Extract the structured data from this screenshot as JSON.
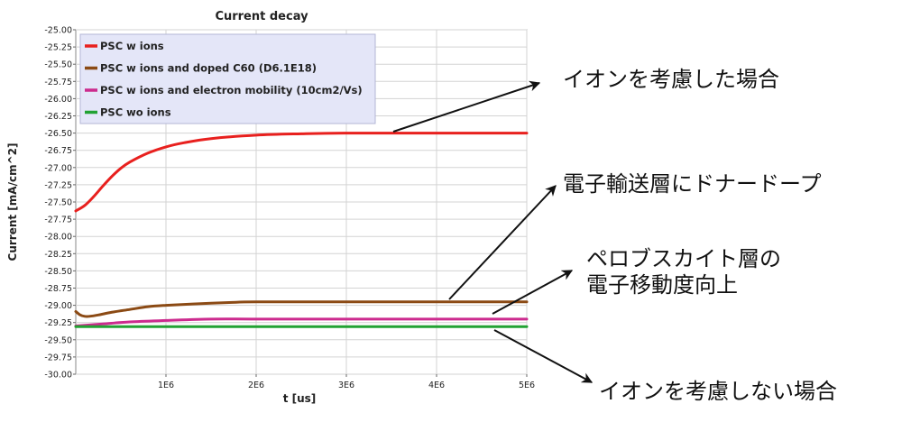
{
  "chart_data": {
    "type": "line",
    "title": "Current decay",
    "xlabel": "t [us]",
    "ylabel": "Current [mA/cm^2]",
    "xlim": [
      0,
      5000000
    ],
    "ylim": [
      -30.0,
      -25.0
    ],
    "x_ticks": [
      1000000,
      2000000,
      3000000,
      4000000,
      5000000
    ],
    "x_tick_labels": [
      "1E6",
      "2E6",
      "3E6",
      "4E6",
      "5E6"
    ],
    "y_ticks": [
      -25.0,
      -25.25,
      -25.5,
      -25.75,
      -26.0,
      -26.25,
      -26.5,
      -26.75,
      -27.0,
      -27.25,
      -27.5,
      -27.75,
      -28.0,
      -28.25,
      -28.5,
      -28.75,
      -29.0,
      -29.25,
      -29.5,
      -29.75,
      -30.0
    ],
    "y_tick_labels": [
      "-25.00",
      "-25.25",
      "-25.50",
      "-25.75",
      "-26.00",
      "-26.25",
      "-26.50",
      "-26.75",
      "-27.00",
      "-27.25",
      "-27.50",
      "-27.75",
      "-28.00",
      "-28.25",
      "-28.50",
      "-28.75",
      "-29.00",
      "-29.25",
      "-29.50",
      "-29.75",
      "-30.00"
    ],
    "grid": true,
    "legend_position": "top-left",
    "series": [
      {
        "name": "PSC w ions",
        "color": "#e8201e",
        "x": [
          0,
          100000,
          200000,
          300000,
          400000,
          500000,
          600000,
          800000,
          1000000,
          1200000,
          1500000,
          2000000,
          2500000,
          3000000,
          4000000,
          5000000
        ],
        "y": [
          -27.63,
          -27.55,
          -27.42,
          -27.27,
          -27.13,
          -27.01,
          -26.92,
          -26.79,
          -26.7,
          -26.64,
          -26.58,
          -26.53,
          -26.51,
          -26.5,
          -26.5,
          -26.5
        ]
      },
      {
        "name": "PSC w ions and doped C60 (D6.1E18)",
        "color": "#8b4a14",
        "x": [
          0,
          50000,
          100000,
          150000,
          250000,
          400000,
          600000,
          800000,
          1000000,
          1300000,
          1700000,
          2000000,
          3000000,
          4000000,
          5000000
        ],
        "y": [
          -29.09,
          -29.14,
          -29.16,
          -29.16,
          -29.14,
          -29.1,
          -29.06,
          -29.02,
          -29.0,
          -28.98,
          -28.96,
          -28.95,
          -28.95,
          -28.95,
          -28.95
        ]
      },
      {
        "name": "PSC w ions and electron mobility (10cm2/Vs)",
        "color": "#cc2b8e",
        "x": [
          0,
          300000,
          600000,
          1000000,
          1500000,
          2000000,
          3000000,
          4000000,
          5000000
        ],
        "y": [
          -29.3,
          -29.27,
          -29.24,
          -29.22,
          -29.2,
          -29.2,
          -29.2,
          -29.2,
          -29.2
        ]
      },
      {
        "name": "PSC wo ions",
        "color": "#22a233",
        "x": [
          0,
          1000000,
          2000000,
          3000000,
          4000000,
          5000000
        ],
        "y": [
          -29.31,
          -29.31,
          -29.31,
          -29.31,
          -29.31,
          -29.31
        ]
      }
    ],
    "annotations": [
      {
        "text": "イオンを考慮した場合"
      },
      {
        "text": "電子輸送層にドナードープ"
      },
      {
        "lines": [
          "ペロブスカイト層の",
          "電子移動度向上"
        ]
      },
      {
        "text": "イオンを考慮しない場合"
      }
    ]
  }
}
